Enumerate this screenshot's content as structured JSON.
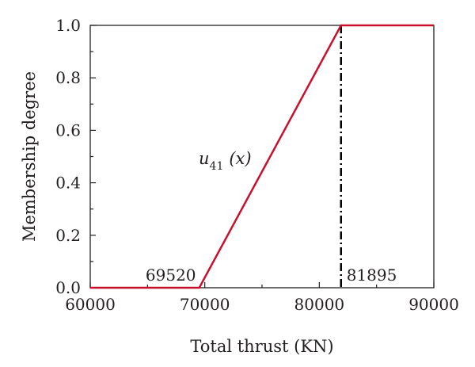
{
  "chart_data": {
    "type": "line",
    "xlabel": "Total thrust (KN)",
    "ylabel": "Membership degree",
    "xlim": [
      60000,
      90000
    ],
    "ylim": [
      0,
      1
    ],
    "x_ticks": [
      60000,
      70000,
      80000,
      90000
    ],
    "y_ticks": [
      0.0,
      0.2,
      0.4,
      0.6,
      0.8,
      1.0
    ],
    "x_tick_labels": [
      "60000",
      "70000",
      "80000",
      "90000"
    ],
    "y_tick_labels": [
      "0.0",
      "0.2",
      "0.4",
      "0.6",
      "0.8",
      "1.0"
    ],
    "grid": false,
    "series": [
      {
        "color": "#c8102e",
        "x": [
          60000,
          69520,
          81895,
          90000
        ],
        "y": [
          0,
          0,
          1,
          1
        ]
      }
    ],
    "reference_line": {
      "x": 81895,
      "style": "dash-dot",
      "color": "#000000"
    },
    "annotations": {
      "left_value": "69520",
      "right_value": "81895",
      "function_main": "u",
      "function_sub": "41",
      "function_arg": "(x)"
    }
  }
}
